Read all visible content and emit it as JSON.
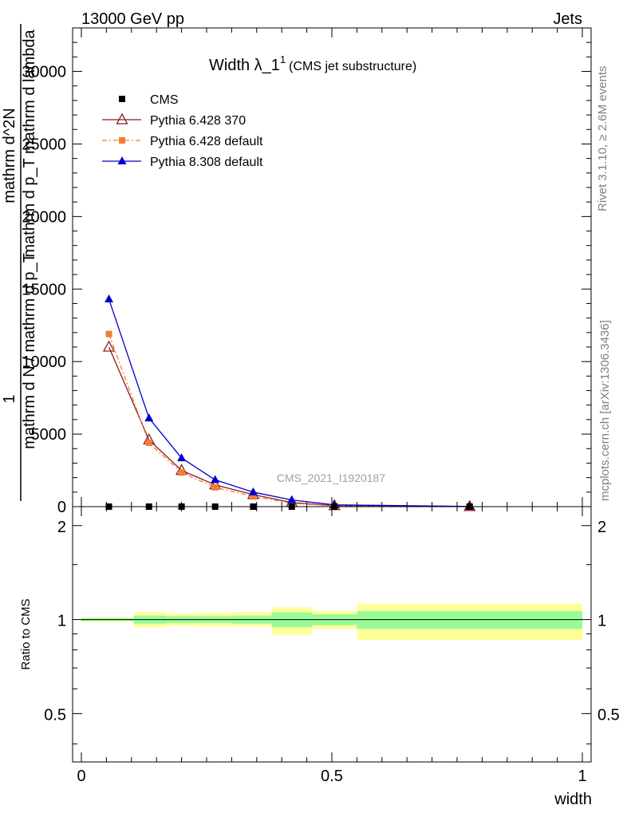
{
  "header": {
    "left": "13000 GeV pp",
    "right": "Jets"
  },
  "side_labels": {
    "rivet": "Rivet 3.1.10, ≥ 2.6M events",
    "mcplots": "mcplots.cern.ch [arXiv:1306.3436]"
  },
  "chart_data": [
    {
      "type": "line",
      "title": "Width λ_1",
      "title_sup": "1",
      "subtitle": "(CMS jet substructure)",
      "watermark": "CMS_2021_I1920187",
      "ylabel_lines": [
        "1",
        "mathrm d N / mathrm d p_T",
        "mathrm d^2N",
        "mathrm d p_T mathrm d lambda"
      ],
      "ylim": [
        0,
        33000
      ],
      "yticks": [
        0,
        5000,
        10000,
        15000,
        20000,
        25000,
        30000
      ],
      "ytick_labels": [
        "0",
        "5000",
        "10000",
        "15000",
        "20000",
        "25000",
        "30000"
      ],
      "xlim": [
        0,
        1
      ],
      "legend_position": "top-left",
      "series": [
        {
          "name": "CMS",
          "color": "#000000",
          "marker": "square-filled",
          "line": "none",
          "x": [
            0.055,
            0.135,
            0.2,
            0.267,
            0.343,
            0.42,
            0.505,
            0.775
          ],
          "y": [
            0,
            0,
            0,
            0,
            0,
            0,
            0,
            0
          ]
        },
        {
          "name": "Pythia 6.428 370",
          "color": "#8b1a1a",
          "marker": "triangle-open",
          "line": "solid",
          "x": [
            0.055,
            0.135,
            0.2,
            0.267,
            0.343,
            0.42,
            0.505,
            0.775
          ],
          "y": [
            11000,
            4600,
            2500,
            1500,
            830,
            280,
            70,
            10
          ]
        },
        {
          "name": "Pythia 6.428 default",
          "color": "#f07d32",
          "marker": "square-filled",
          "line": "dashdot",
          "x": [
            0.055,
            0.135,
            0.2,
            0.267,
            0.343,
            0.42,
            0.505,
            0.775
          ],
          "y": [
            11900,
            4400,
            2350,
            1330,
            700,
            230,
            50,
            8
          ]
        },
        {
          "name": "Pythia 8.308 default",
          "color": "#0000cd",
          "marker": "triangle-filled",
          "line": "solid",
          "x": [
            0.055,
            0.135,
            0.2,
            0.267,
            0.343,
            0.42,
            0.505,
            0.775
          ],
          "y": [
            14300,
            6100,
            3350,
            1850,
            1000,
            460,
            120,
            15
          ]
        }
      ]
    },
    {
      "type": "area",
      "ylabel": "Ratio to CMS",
      "xlabel": "width",
      "ylim": [
        0.35,
        2.3
      ],
      "yticks": [
        0.5,
        1,
        2
      ],
      "ytick_labels": [
        "0.5",
        "1",
        "2"
      ],
      "xlim": [
        0,
        1
      ],
      "xticks": [
        0,
        0.5,
        1
      ],
      "xtick_labels": [
        "0",
        "0.5",
        "1"
      ],
      "reference_line": 1,
      "bands": [
        {
          "x0": 0.0,
          "x1": 0.105,
          "inner": [
            0.99,
            1.01
          ],
          "outer": [
            0.985,
            1.015
          ]
        },
        {
          "x0": 0.105,
          "x1": 0.17,
          "inner": [
            0.97,
            1.03
          ],
          "outer": [
            0.945,
            1.055
          ]
        },
        {
          "x0": 0.17,
          "x1": 0.23,
          "inner": [
            0.975,
            1.025
          ],
          "outer": [
            0.955,
            1.045
          ]
        },
        {
          "x0": 0.23,
          "x1": 0.3,
          "inner": [
            0.975,
            1.025
          ],
          "outer": [
            0.95,
            1.05
          ]
        },
        {
          "x0": 0.3,
          "x1": 0.38,
          "inner": [
            0.97,
            1.03
          ],
          "outer": [
            0.95,
            1.055
          ]
        },
        {
          "x0": 0.38,
          "x1": 0.46,
          "inner": [
            0.945,
            1.055
          ],
          "outer": [
            0.895,
            1.095
          ]
        },
        {
          "x0": 0.46,
          "x1": 0.55,
          "inner": [
            0.96,
            1.04
          ],
          "outer": [
            0.935,
            1.065
          ]
        },
        {
          "x0": 0.55,
          "x1": 1.0,
          "inner": [
            0.935,
            1.065
          ],
          "outer": [
            0.86,
            1.125
          ]
        }
      ],
      "colors": {
        "inner": "#98fb98",
        "outer": "#ffff98"
      }
    }
  ]
}
